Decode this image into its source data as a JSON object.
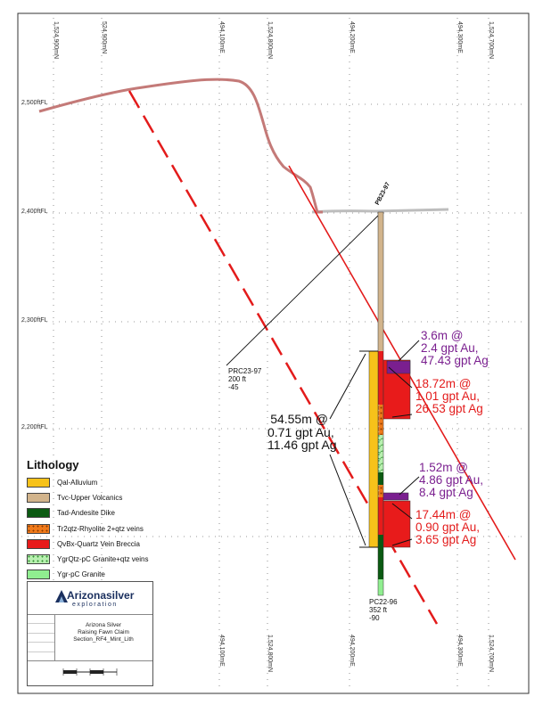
{
  "grid": {
    "elevations": [
      "2,500ftFL",
      "2,400ftFL",
      "2,300ftFL",
      "2,200ftFL"
    ],
    "top_coords": [
      "1,524,900mN",
      "524,900mN",
      "494,100mE",
      "1,524,800mN",
      "494,200mE",
      "494,300mE",
      "1,524,700mN"
    ],
    "bottom_coords": [
      "494,100mE",
      "1,524,800mN",
      "494,200mE",
      "494,300mE",
      "1,524,700mN"
    ]
  },
  "holes": {
    "main_top_label": "PB23-97",
    "angled": {
      "name": "PRC23-97",
      "length": "200 ft",
      "dip": "-45"
    },
    "vertical": {
      "name": "PC22-96",
      "length": "352 ft",
      "dip": "-90"
    }
  },
  "intercepts": {
    "upper_purple": [
      "3.6m @",
      "2.4 gpt Au,",
      "47.43 gpt Ag"
    ],
    "upper_red": [
      "18.72m @",
      "1.01 gpt Au,",
      "26.53 gpt Ag"
    ],
    "overall": [
      "54.55m @",
      "0.71 gpt Au,",
      "11.46 gpt Ag"
    ],
    "lower_purple": [
      "1.52m @",
      "4.86 gpt Au,",
      "8.4 gpt Ag"
    ],
    "lower_red": [
      "17.44m @",
      "0.90 gpt Au,",
      "3.65 gpt Ag"
    ]
  },
  "legend": {
    "title": "Lithology",
    "items": [
      {
        "label": "Qal-Alluvium",
        "color": "#f7c21a",
        "pattern": "solid"
      },
      {
        "label": "Tvc-Upper Volcanics",
        "color": "#d2b48c",
        "pattern": "solid"
      },
      {
        "label": "Tad-Andesite Dike",
        "color": "#0b5a12",
        "pattern": "solid"
      },
      {
        "label": "Tr2qtz-Rhyolite 2+qtz veins",
        "color": "#f07a1a",
        "pattern": "speckle"
      },
      {
        "label": "QvBx-Quartz Vein Breccia",
        "color": "#e81b1b",
        "pattern": "solid"
      },
      {
        "label": "YgrQtz-pC Granite+qtz veins",
        "color": "#9be39b",
        "pattern": "speckle"
      },
      {
        "label": "Ygr-pC Granite",
        "color": "#90ee90",
        "pattern": "solid"
      }
    ]
  },
  "title_block": {
    "logo_main": "Arizonasilver",
    "logo_sub": "exploration",
    "project": [
      "Arizona Silver",
      "Raising Fawn Claim",
      "Section_RF4_Mint_Lith"
    ]
  },
  "colors": {
    "topography": "#c47a78",
    "fault": "#e31b1b",
    "purple": "#7a1f8f",
    "ground": "#bdbdbd"
  }
}
